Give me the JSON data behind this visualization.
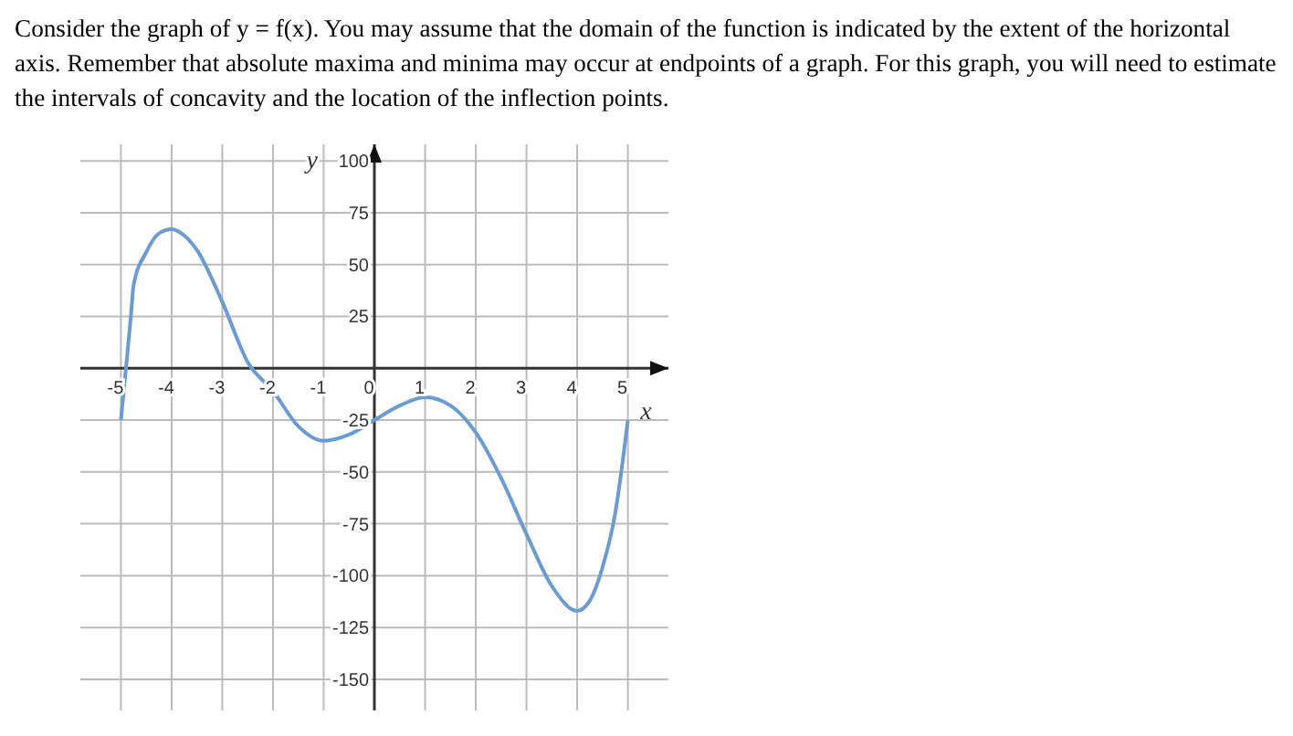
{
  "chart_data": {
    "type": "line",
    "title": "Consider the graph of y = f(x). You may assume that the domain of the function is indicated by the extent of the horizontal axis. Remember that absolute maxima and minima may occur at endpoints of a graph. For this graph, you will need to estimate the intervals of concavity and the location of the inflection points.",
    "xlabel": "x",
    "ylabel": "y",
    "x": [
      -5,
      -4.9,
      -4.8,
      -4.75,
      -4.5,
      -4.25,
      -4,
      -3.75,
      -3.5,
      -3,
      -2.5,
      -2,
      -1.5,
      -1,
      -0.5,
      0,
      0.5,
      1,
      1.5,
      2,
      2.5,
      3,
      3.5,
      4,
      4.25,
      4.5,
      4.75,
      5
    ],
    "series": [
      {
        "color": "#6a9bd1",
        "values": [
          -25,
          0,
          26,
          40,
          56,
          65,
          67,
          64,
          57,
          32,
          3,
          -11,
          -28,
          -35,
          -32,
          -25,
          -18,
          -14,
          -18,
          -31,
          -53,
          -80,
          -105,
          -117,
          -112,
          -96,
          -70,
          -25
        ]
      }
    ],
    "xlim": [
      -5.8,
      5.8
    ],
    "ylim": [
      -165,
      108
    ],
    "xticks": [
      -5,
      -4,
      -3,
      -2,
      -1,
      0,
      1,
      2,
      3,
      4,
      5
    ],
    "yticks": [
      -150,
      -125,
      -100,
      -75,
      -50,
      -25,
      25,
      50,
      75,
      100
    ],
    "grid": true,
    "marker": "none",
    "line_style": "solid"
  }
}
